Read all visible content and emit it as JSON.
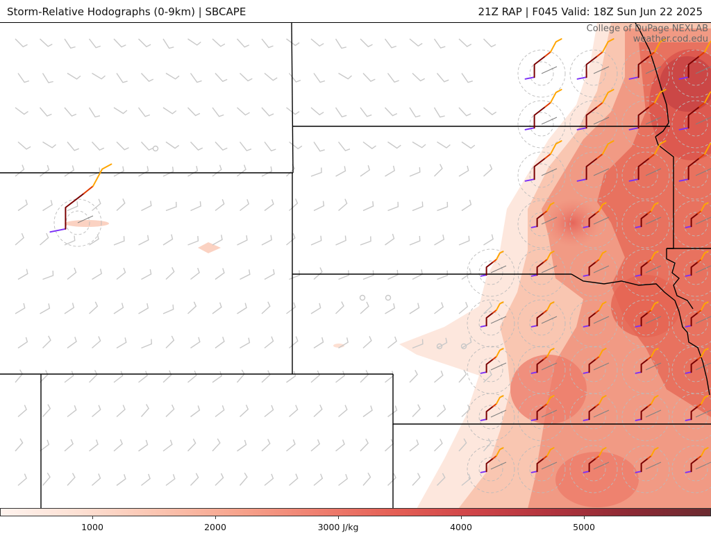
{
  "header": {
    "left_title": "Storm-Relative Hodographs (0-9km) | SBCAPE",
    "right_title": "21Z RAP | F045 Valid: 18Z Sun Jun 22 2025"
  },
  "credit": {
    "line1": "College of DuPage NEXLAB",
    "line2": "weather.cod.edu"
  },
  "colorbar": {
    "field": "SBCAPE",
    "units": "J/kg",
    "min": 0,
    "max": 6000,
    "ticks": [
      {
        "value": 1000,
        "label": "1000"
      },
      {
        "value": 2000,
        "label": "2000"
      },
      {
        "value": 3000,
        "label": "3000 J/kg"
      },
      {
        "value": 4000,
        "label": "4000"
      },
      {
        "value": 5000,
        "label": "5000"
      }
    ],
    "colors": [
      "#fff3ee",
      "#fde0d3",
      "#fbc4b0",
      "#f7a48d",
      "#ef8070",
      "#e45f55",
      "#cf4448",
      "#b0333d",
      "#8c2934",
      "#6b2a30"
    ]
  },
  "hodograph_colors": {
    "0-1km": "#7b2ff7",
    "1-3km": "#7a0000",
    "3-6km": "#e03c00",
    "6-9km": "#ffa500"
  },
  "barb_color": "#c8c8c8",
  "border_color": "#000000"
}
